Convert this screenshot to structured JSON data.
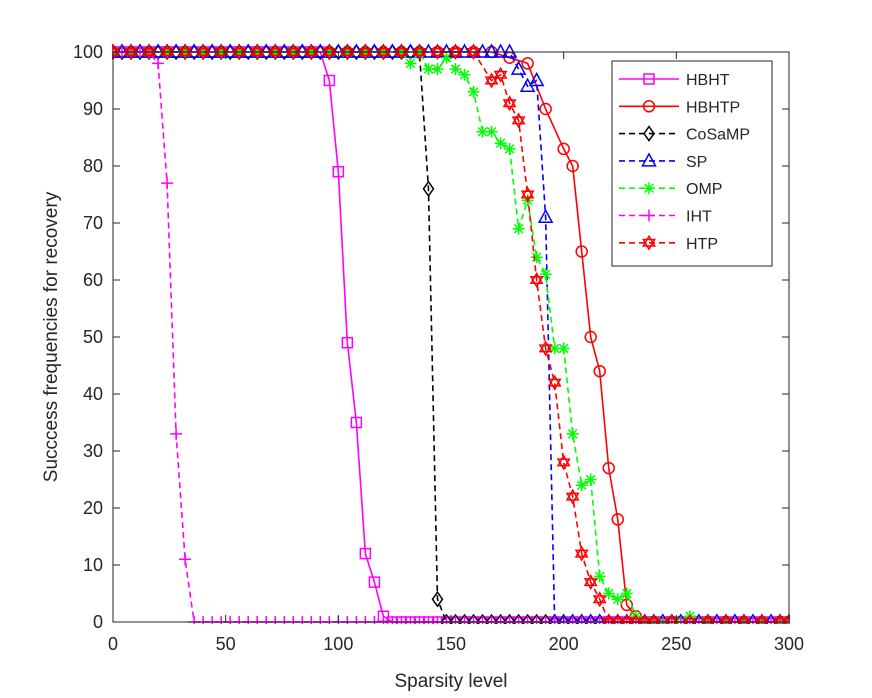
{
  "chart_data": {
    "type": "line",
    "title": "",
    "xlabel": "Sparsity  level",
    "ylabel": "Succcess  frequencies  for  recovery",
    "xlim": [
      0,
      300
    ],
    "ylim": [
      0,
      100
    ],
    "xticks": [
      0,
      50,
      100,
      150,
      200,
      250,
      300
    ],
    "yticks": [
      0,
      10,
      20,
      30,
      40,
      50,
      60,
      70,
      80,
      90,
      100
    ],
    "grid": false,
    "legend_position": "top-right",
    "series": [
      {
        "name": "HBHT",
        "color": "#ff00ff",
        "dash": "solid",
        "marker": "square",
        "x": [
          0,
          4,
          8,
          12,
          16,
          20,
          24,
          28,
          32,
          36,
          40,
          44,
          48,
          52,
          56,
          60,
          64,
          68,
          72,
          76,
          80,
          84,
          88,
          92,
          96,
          100,
          104,
          108,
          112,
          116,
          120,
          124,
          128,
          132,
          136,
          140,
          144,
          148,
          152,
          156,
          160,
          164,
          168,
          172,
          176,
          180,
          184,
          188,
          192,
          196,
          200,
          204,
          208,
          212,
          216,
          220,
          224,
          228,
          232,
          236,
          240,
          244,
          248,
          252,
          256,
          260,
          264,
          268,
          272,
          276,
          280,
          284,
          288,
          292,
          296,
          300
        ],
        "y": [
          100,
          100,
          100,
          100,
          100,
          100,
          100,
          100,
          100,
          100,
          100,
          100,
          100,
          100,
          100,
          100,
          100,
          100,
          100,
          100,
          100,
          100,
          100,
          100,
          95,
          79,
          49,
          35,
          12,
          7,
          1,
          0,
          0,
          0,
          0,
          0,
          0,
          0,
          0,
          0,
          0,
          0,
          0,
          0,
          0,
          0,
          0,
          0,
          0,
          0,
          0,
          0,
          0,
          0,
          0,
          0,
          0,
          0,
          0,
          0,
          0,
          0,
          0,
          0,
          0,
          0,
          0,
          0,
          0,
          0,
          0,
          0,
          0,
          0,
          0,
          0
        ]
      },
      {
        "name": "HBHTP",
        "color": "#ff0000",
        "dash": "solid",
        "marker": "circle",
        "x": [
          0,
          8,
          16,
          24,
          32,
          40,
          48,
          56,
          64,
          72,
          80,
          88,
          96,
          104,
          112,
          120,
          128,
          136,
          144,
          152,
          160,
          168,
          176,
          184,
          192,
          200,
          204,
          208,
          212,
          216,
          220,
          224,
          228,
          232,
          240,
          248,
          256,
          264,
          272,
          280,
          288,
          296,
          300
        ],
        "y": [
          100,
          100,
          100,
          100,
          100,
          100,
          100,
          100,
          100,
          100,
          100,
          100,
          100,
          100,
          100,
          100,
          100,
          100,
          100,
          100,
          100,
          100,
          99,
          98,
          90,
          83,
          80,
          65,
          50,
          44,
          27,
          18,
          3,
          1,
          0,
          0,
          0,
          0,
          0,
          0,
          0,
          0,
          0
        ]
      },
      {
        "name": "CoSaMP",
        "color": "#000000",
        "dash": "dashed",
        "marker": "diamond",
        "x": [
          0,
          4,
          8,
          12,
          16,
          20,
          24,
          28,
          32,
          36,
          40,
          44,
          48,
          52,
          56,
          60,
          64,
          68,
          72,
          76,
          80,
          84,
          88,
          92,
          96,
          100,
          104,
          108,
          112,
          116,
          120,
          124,
          128,
          132,
          136,
          140,
          144,
          148,
          152,
          156,
          160,
          164,
          168,
          172,
          176,
          180,
          184,
          188,
          192,
          196,
          200,
          204,
          208,
          212,
          216,
          220,
          224,
          228,
          232,
          236,
          240,
          244,
          248,
          252,
          256,
          260,
          264,
          268,
          272,
          276,
          280,
          284,
          288,
          292,
          296,
          300
        ],
        "y": [
          100,
          100,
          100,
          100,
          100,
          100,
          100,
          100,
          100,
          100,
          100,
          100,
          100,
          100,
          100,
          100,
          100,
          100,
          100,
          100,
          100,
          100,
          100,
          100,
          100,
          100,
          100,
          100,
          100,
          100,
          100,
          100,
          100,
          100,
          100,
          76,
          4,
          0,
          0,
          0,
          0,
          0,
          0,
          0,
          0,
          0,
          0,
          0,
          0,
          0,
          0,
          0,
          0,
          0,
          0,
          0,
          0,
          0,
          0,
          0,
          0,
          0,
          0,
          0,
          0,
          0,
          0,
          0,
          0,
          0,
          0,
          0,
          0,
          0,
          0,
          0
        ]
      },
      {
        "name": "SP",
        "color": "#0000ff",
        "dash": "dashed",
        "marker": "triangle",
        "x": [
          0,
          4,
          8,
          12,
          16,
          20,
          24,
          28,
          32,
          36,
          40,
          44,
          48,
          52,
          56,
          60,
          64,
          68,
          72,
          76,
          80,
          84,
          88,
          92,
          96,
          100,
          104,
          108,
          112,
          116,
          120,
          124,
          128,
          132,
          136,
          140,
          144,
          148,
          152,
          156,
          160,
          164,
          168,
          172,
          176,
          180,
          184,
          188,
          192,
          196,
          200,
          204,
          208,
          212,
          216,
          220,
          224,
          228,
          232,
          236,
          240,
          244,
          248,
          252,
          256,
          260,
          264,
          268,
          272,
          276,
          280,
          284,
          288,
          292,
          296,
          300
        ],
        "y": [
          100,
          100,
          100,
          100,
          100,
          100,
          100,
          100,
          100,
          100,
          100,
          100,
          100,
          100,
          100,
          100,
          100,
          100,
          100,
          100,
          100,
          100,
          100,
          100,
          100,
          100,
          100,
          100,
          100,
          100,
          100,
          100,
          100,
          100,
          100,
          100,
          100,
          100,
          100,
          100,
          100,
          100,
          100,
          100,
          100,
          97,
          94,
          95,
          71,
          0,
          0,
          0,
          0,
          0,
          0,
          0,
          0,
          0,
          0,
          0,
          0,
          0,
          0,
          0,
          0,
          0,
          0,
          0,
          0,
          0,
          0,
          0,
          0,
          0,
          0,
          0
        ]
      },
      {
        "name": "OMP",
        "color": "#00ff00",
        "dash": "dashed",
        "marker": "asterisk",
        "x": [
          0,
          8,
          16,
          24,
          32,
          40,
          48,
          56,
          64,
          72,
          80,
          88,
          96,
          104,
          112,
          120,
          128,
          132,
          136,
          140,
          144,
          148,
          152,
          156,
          160,
          164,
          168,
          172,
          176,
          180,
          184,
          188,
          192,
          196,
          200,
          204,
          208,
          212,
          216,
          220,
          224,
          228,
          232,
          236,
          240,
          244,
          250,
          256,
          264,
          272,
          280,
          288,
          296,
          300
        ],
        "y": [
          100,
          100,
          100,
          100,
          100,
          100,
          100,
          100,
          100,
          100,
          100,
          100,
          100,
          100,
          100,
          100,
          100,
          98,
          100,
          97,
          97,
          99,
          97,
          96,
          93,
          86,
          86,
          84,
          83,
          69,
          74,
          64,
          61,
          48,
          48,
          33,
          24,
          25,
          8,
          5,
          4,
          5,
          1,
          0,
          0,
          0,
          0,
          1,
          0,
          0,
          0,
          0,
          0,
          0
        ]
      },
      {
        "name": "IHT",
        "color": "#ff00ff",
        "dash": "dashed",
        "marker": "plus",
        "x": [
          0,
          4,
          8,
          12,
          16,
          20,
          24,
          28,
          32,
          36,
          40,
          44,
          48,
          52,
          56,
          60,
          64,
          68,
          72,
          76,
          80,
          84,
          88,
          92,
          96,
          100,
          104,
          108,
          112,
          116,
          120,
          124,
          128,
          132,
          136,
          140,
          144,
          148,
          152,
          156,
          160,
          164,
          168,
          172,
          176,
          180,
          184,
          188,
          192,
          196,
          200,
          204,
          208,
          212,
          216,
          220,
          224,
          228,
          232,
          236,
          240,
          244,
          248,
          252,
          256,
          260,
          264,
          268,
          272,
          276,
          280,
          284,
          288,
          292,
          296,
          300
        ],
        "y": [
          100,
          100,
          100,
          100,
          100,
          98,
          77,
          33,
          11,
          0,
          0,
          0,
          0,
          0,
          0,
          0,
          0,
          0,
          0,
          0,
          0,
          0,
          0,
          0,
          0,
          0,
          0,
          0,
          0,
          0,
          0,
          0,
          0,
          0,
          0,
          0,
          0,
          0,
          0,
          0,
          0,
          0,
          0,
          0,
          0,
          0,
          0,
          0,
          0,
          0,
          0,
          0,
          0,
          0,
          0,
          0,
          0,
          0,
          0,
          0,
          0,
          0,
          0,
          0,
          0,
          0,
          0,
          0,
          0,
          0,
          0,
          0,
          0,
          0,
          0,
          0
        ]
      },
      {
        "name": "HTP",
        "color": "#ff0000",
        "dash": "dashed",
        "marker": "hexagram",
        "x": [
          0,
          8,
          16,
          24,
          32,
          40,
          48,
          56,
          64,
          72,
          80,
          88,
          96,
          104,
          112,
          120,
          128,
          136,
          144,
          152,
          160,
          168,
          172,
          176,
          180,
          184,
          188,
          192,
          196,
          200,
          204,
          208,
          212,
          216,
          220,
          224,
          228,
          232,
          236,
          240,
          248,
          256,
          264,
          272,
          280,
          288,
          296,
          300
        ],
        "y": [
          100,
          100,
          100,
          100,
          100,
          100,
          100,
          100,
          100,
          100,
          100,
          100,
          100,
          100,
          100,
          100,
          100,
          100,
          100,
          100,
          100,
          95,
          96,
          91,
          88,
          75,
          60,
          48,
          42,
          28,
          22,
          12,
          7,
          4,
          0,
          0,
          0,
          0,
          0,
          0,
          0,
          0,
          0,
          0,
          0,
          0,
          0,
          0
        ]
      }
    ]
  }
}
